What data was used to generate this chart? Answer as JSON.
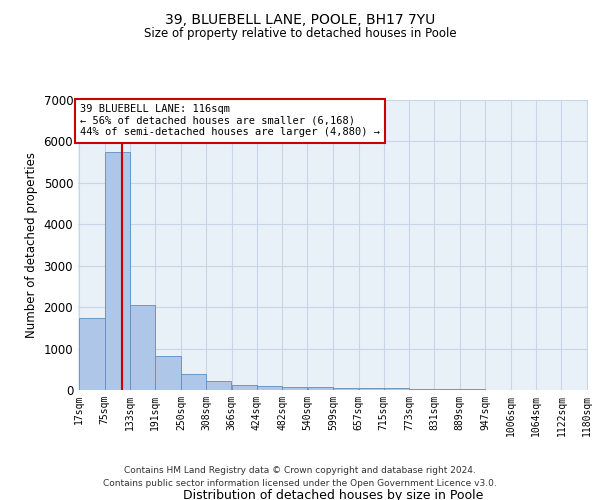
{
  "title1": "39, BLUEBELL LANE, POOLE, BH17 7YU",
  "title2": "Size of property relative to detached houses in Poole",
  "xlabel": "Distribution of detached houses by size in Poole",
  "ylabel": "Number of detached properties",
  "footer1": "Contains HM Land Registry data © Crown copyright and database right 2024.",
  "footer2": "Contains public sector information licensed under the Open Government Licence v3.0.",
  "bin_edges": [
    17,
    75,
    133,
    191,
    250,
    308,
    366,
    424,
    482,
    540,
    599,
    657,
    715,
    773,
    831,
    889,
    947,
    1006,
    1064,
    1122,
    1180
  ],
  "bar_heights": [
    1750,
    5750,
    2050,
    830,
    380,
    220,
    130,
    100,
    70,
    70,
    60,
    50,
    40,
    30,
    20,
    15,
    10,
    8,
    5,
    5
  ],
  "bar_color": "#aec6e8",
  "bar_edge_color": "#5a8fc4",
  "grid_color": "#c8d4e8",
  "background_color": "#e8f0f8",
  "property_size": 116,
  "red_line_color": "#cc0000",
  "annotation_text": "39 BLUEBELL LANE: 116sqm\n← 56% of detached houses are smaller (6,168)\n44% of semi-detached houses are larger (4,880) →",
  "annotation_box_color": "white",
  "annotation_box_edge": "#cc0000",
  "ylim": [
    0,
    7000
  ],
  "yticks": [
    0,
    1000,
    2000,
    3000,
    4000,
    5000,
    6000,
    7000
  ],
  "x_labels": [
    "17sqm",
    "75sqm",
    "133sqm",
    "191sqm",
    "250sqm",
    "308sqm",
    "366sqm",
    "424sqm",
    "482sqm",
    "540sqm",
    "599sqm",
    "657sqm",
    "715sqm",
    "773sqm",
    "831sqm",
    "889sqm",
    "947sqm",
    "1006sqm",
    "1064sqm",
    "1122sqm",
    "1180sqm"
  ]
}
